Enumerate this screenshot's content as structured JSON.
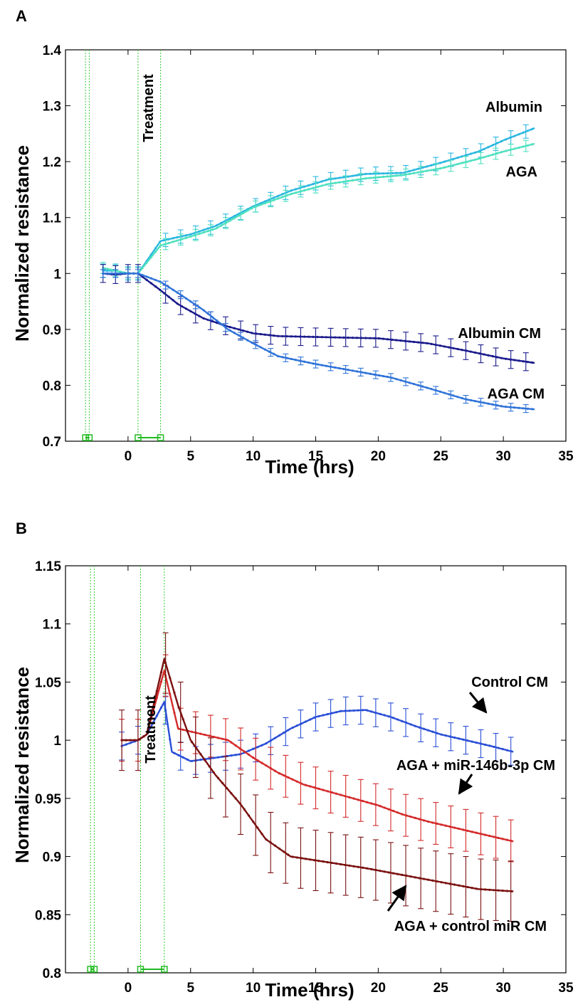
{
  "chart_data": [
    {
      "panel_label": "A",
      "type": "line",
      "xlabel": "Time (hrs)",
      "ylabel": "Normalized resistance",
      "xlim": [
        -5,
        35
      ],
      "ylim": [
        0.7,
        1.4
      ],
      "xticks": [
        0,
        5,
        10,
        15,
        20,
        25,
        30,
        35
      ],
      "yticks": [
        0.7,
        0.8,
        0.9,
        1,
        1.1,
        1.2,
        1.3,
        1.4
      ],
      "ytick_labels": [
        "0.7",
        "0.8",
        "0.9",
        "1",
        "1.1",
        "1.2",
        "1.3",
        "1.4"
      ],
      "xtick_labels": [
        "0",
        "5",
        "10",
        "15",
        "20",
        "25",
        "30",
        "35"
      ],
      "annotation": "Treatment",
      "markers": {
        "vlines": [
          -3.4,
          -3.1,
          0.8,
          2.6
        ],
        "intervals": [
          [
            -3.4,
            -3.1
          ],
          [
            0.8,
            2.6
          ]
        ]
      },
      "series": [
        {
          "name": "Albumin",
          "color": "#2bb7e0",
          "err": 0.012,
          "points": [
            [
              -2,
              1.005
            ],
            [
              -1,
              1.005
            ],
            [
              0,
              1.0
            ],
            [
              0.8,
              1.0
            ],
            [
              2.6,
              1.058
            ],
            [
              5,
              1.07
            ],
            [
              7,
              1.085
            ],
            [
              10,
              1.12
            ],
            [
              13,
              1.148
            ],
            [
              16,
              1.168
            ],
            [
              19,
              1.178
            ],
            [
              22,
              1.18
            ],
            [
              25,
              1.198
            ],
            [
              28,
              1.218
            ],
            [
              30,
              1.238
            ],
            [
              32.5,
              1.26
            ]
          ]
        },
        {
          "name": "AGA",
          "color": "#4fe0bf",
          "err": 0.01,
          "points": [
            [
              -2,
              1.01
            ],
            [
              -1,
              1.005
            ],
            [
              0,
              1.0
            ],
            [
              0.8,
              1.0
            ],
            [
              2.6,
              1.05
            ],
            [
              5,
              1.066
            ],
            [
              7,
              1.08
            ],
            [
              10,
              1.118
            ],
            [
              13,
              1.142
            ],
            [
              16,
              1.16
            ],
            [
              19,
              1.17
            ],
            [
              22,
              1.176
            ],
            [
              25,
              1.188
            ],
            [
              28,
              1.205
            ],
            [
              30,
              1.218
            ],
            [
              32.5,
              1.232
            ]
          ]
        },
        {
          "name": "Albumin CM",
          "color": "#1a1a8c",
          "err": 0.016,
          "points": [
            [
              -2,
              1.0
            ],
            [
              -1,
              0.998
            ],
            [
              0,
              1.0
            ],
            [
              0.8,
              1.0
            ],
            [
              2.6,
              0.97
            ],
            [
              4,
              0.945
            ],
            [
              6,
              0.92
            ],
            [
              8,
              0.905
            ],
            [
              10,
              0.893
            ],
            [
              12,
              0.888
            ],
            [
              16,
              0.886
            ],
            [
              20,
              0.884
            ],
            [
              24,
              0.875
            ],
            [
              27,
              0.862
            ],
            [
              30,
              0.848
            ],
            [
              32.5,
              0.84
            ]
          ]
        },
        {
          "name": "AGA CM",
          "color": "#2f73d8",
          "err": 0.007,
          "points": [
            [
              -2,
              1.0
            ],
            [
              -1,
              1.0
            ],
            [
              0,
              1.0
            ],
            [
              0.8,
              1.0
            ],
            [
              2.6,
              0.985
            ],
            [
              4,
              0.965
            ],
            [
              6,
              0.935
            ],
            [
              8,
              0.9
            ],
            [
              10,
              0.875
            ],
            [
              12,
              0.852
            ],
            [
              15,
              0.838
            ],
            [
              18,
              0.826
            ],
            [
              21,
              0.814
            ],
            [
              24,
              0.795
            ],
            [
              27,
              0.775
            ],
            [
              30,
              0.762
            ],
            [
              32.5,
              0.757
            ]
          ]
        }
      ],
      "series_labels": [
        "Albumin",
        "AGA",
        "Albumin CM",
        "AGA CM"
      ]
    },
    {
      "panel_label": "B",
      "type": "line",
      "xlabel": "Time (hrs)",
      "ylabel": "Normalized resistance",
      "xlim": [
        -5,
        35
      ],
      "ylim": [
        0.8,
        1.15
      ],
      "xticks": [
        0,
        5,
        10,
        15,
        20,
        25,
        30,
        35
      ],
      "yticks": [
        0.8,
        0.85,
        0.9,
        0.95,
        1,
        1.05,
        1.1,
        1.15
      ],
      "ytick_labels": [
        "0.8",
        "0.85",
        "0.9",
        "0.95",
        "1",
        "1.05",
        "1.1",
        "1.15"
      ],
      "xtick_labels": [
        "0",
        "5",
        "10",
        "15",
        "20",
        "25",
        "30",
        "35"
      ],
      "annotation": "Treatment",
      "markers": {
        "vlines": [
          -3.0,
          -2.7,
          1.0,
          2.9
        ],
        "intervals": [
          [
            -3.0,
            -2.7
          ],
          [
            1.0,
            2.9
          ]
        ]
      },
      "series": [
        {
          "name": "Control CM",
          "color": "#2a4fd6",
          "err": 0.012,
          "points": [
            [
              -0.5,
              0.995
            ],
            [
              0.8,
              1.0
            ],
            [
              1.5,
              1.005
            ],
            [
              2.9,
              1.033
            ],
            [
              3.5,
              0.99
            ],
            [
              5,
              0.982
            ],
            [
              7,
              0.985
            ],
            [
              9,
              0.988
            ],
            [
              11,
              0.997
            ],
            [
              13,
              1.01
            ],
            [
              15,
              1.02
            ],
            [
              17,
              1.025
            ],
            [
              19,
              1.026
            ],
            [
              21,
              1.02
            ],
            [
              23,
              1.012
            ],
            [
              25,
              1.005
            ],
            [
              27,
              1.0
            ],
            [
              29,
              0.995
            ],
            [
              30.8,
              0.99
            ]
          ]
        },
        {
          "name": "AGA + miR-146b-3p CM",
          "color": "#d42a2a",
          "err": 0.018,
          "points": [
            [
              -0.5,
              1.0
            ],
            [
              0.8,
              1.0
            ],
            [
              1.5,
              1.005
            ],
            [
              2.9,
              1.06
            ],
            [
              4,
              1.01
            ],
            [
              6,
              1.005
            ],
            [
              8,
              1.0
            ],
            [
              10,
              0.985
            ],
            [
              12,
              0.972
            ],
            [
              14,
              0.962
            ],
            [
              16,
              0.956
            ],
            [
              18,
              0.95
            ],
            [
              20,
              0.944
            ],
            [
              22,
              0.936
            ],
            [
              24,
              0.93
            ],
            [
              26,
              0.925
            ],
            [
              28,
              0.92
            ],
            [
              30.8,
              0.913
            ]
          ]
        },
        {
          "name": "AGA + control miR CM",
          "color": "#7a1010",
          "err": 0.026,
          "points": [
            [
              -0.5,
              1.0
            ],
            [
              0.8,
              1.0
            ],
            [
              1.5,
              1.005
            ],
            [
              2.9,
              1.07
            ],
            [
              4,
              1.03
            ],
            [
              5,
              1.0
            ],
            [
              7,
              0.97
            ],
            [
              9,
              0.945
            ],
            [
              11,
              0.915
            ],
            [
              13,
              0.9
            ],
            [
              16,
              0.895
            ],
            [
              19,
              0.89
            ],
            [
              22,
              0.884
            ],
            [
              25,
              0.878
            ],
            [
              28,
              0.872
            ],
            [
              30.8,
              0.87
            ]
          ]
        }
      ],
      "series_labels": [
        "Control CM",
        "AGA + miR-146b-3p CM",
        "AGA + control miR CM"
      ]
    }
  ]
}
